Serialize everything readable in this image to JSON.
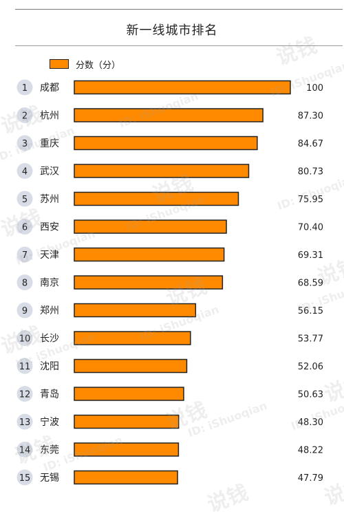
{
  "chart_data": {
    "type": "bar",
    "orientation": "horizontal",
    "title": "新一线城市排名",
    "legend": {
      "label": "分数（分）",
      "placement": "top-left"
    },
    "categories": [
      "成都",
      "杭州",
      "重庆",
      "武汉",
      "苏州",
      "西安",
      "天津",
      "南京",
      "郑州",
      "长沙",
      "沈阳",
      "青岛",
      "宁波",
      "东莞",
      "无锡"
    ],
    "ranks": [
      "1",
      "2",
      "3",
      "4",
      "5",
      "6",
      "7",
      "8",
      "9",
      "10",
      "11",
      "12",
      "13",
      "14",
      "15"
    ],
    "series": [
      {
        "name": "分数（分）",
        "values": [
          100,
          87.3,
          84.67,
          80.73,
          75.95,
          70.4,
          69.31,
          68.59,
          56.15,
          53.77,
          52.06,
          50.63,
          48.3,
          48.22,
          47.79
        ],
        "labels": [
          "100",
          "87.30",
          "84.67",
          "80.73",
          "75.95",
          "70.40",
          "69.31",
          "68.59",
          "56.15",
          "53.77",
          "52.06",
          "50.63",
          "48.30",
          "48.22",
          "47.79"
        ]
      }
    ],
    "xlim": [
      0,
      100
    ],
    "grid": false,
    "colors": {
      "bar": "#FF8A00",
      "bar_outline": "#222222",
      "rank_badge": "#D8DCE6"
    }
  },
  "watermarks": {
    "brand": "说钱",
    "id": "ID: iShuoqian"
  }
}
